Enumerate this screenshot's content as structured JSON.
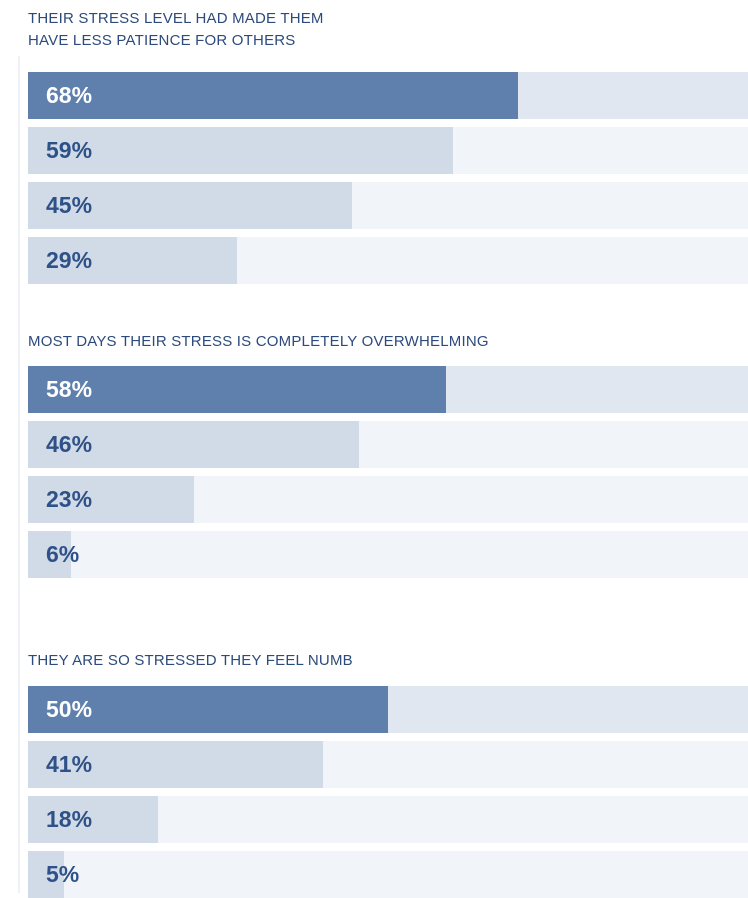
{
  "chart_data": [
    {
      "type": "bar",
      "orientation": "horizontal",
      "title": "THEIR STRESS LEVEL HAD MADE THEM\nHAVE LESS PATIENCE FOR OTHERS",
      "values": [
        68,
        59,
        45,
        29
      ],
      "labels": [
        "68%",
        "59%",
        "45%",
        "29%"
      ],
      "xlim": [
        0,
        100
      ]
    },
    {
      "type": "bar",
      "orientation": "horizontal",
      "title": "MOST DAYS THEIR STRESS IS COMPLETELY OVERWHELMING",
      "values": [
        58,
        46,
        23,
        6
      ],
      "labels": [
        "58%",
        "46%",
        "23%",
        "6%"
      ],
      "xlim": [
        0,
        100
      ]
    },
    {
      "type": "bar",
      "orientation": "horizontal",
      "title": "THEY ARE SO STRESSED THEY FEEL NUMB",
      "values": [
        50,
        41,
        18,
        5
      ],
      "labels": [
        "50%",
        "41%",
        "18%",
        "5%"
      ],
      "xlim": [
        0,
        100
      ]
    }
  ],
  "colors": {
    "highlight_bar": "#5f7fac",
    "highlight_track": "#e1e7f0",
    "bar": "#d1dae7",
    "track": "#f1f4f9",
    "label": "#2e5288",
    "title": "#2c4a7c"
  }
}
